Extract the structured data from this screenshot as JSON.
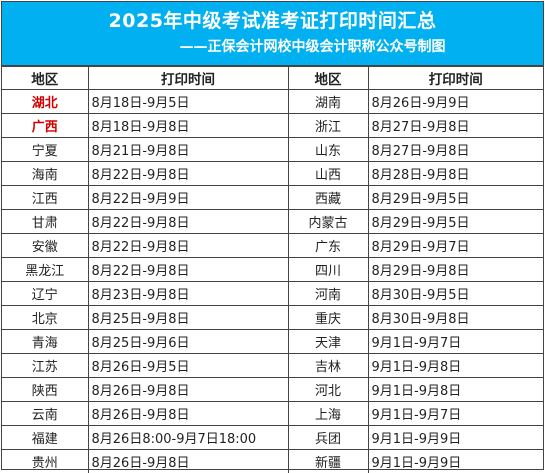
{
  "title": "2025年中级考试准考证打印时间汇总",
  "subtitle": "——正保会计网校中级会计职称公众号制图",
  "headers": [
    "地区",
    "打印时间",
    "地区",
    "打印时间"
  ],
  "accent_color": "#00b0f0",
  "highlight_color": "#d40000",
  "rows": [
    {
      "left": {
        "region": "湖北",
        "period": "8月18日-9月5日",
        "highlight": true
      },
      "right": {
        "region": "湖南",
        "period": "8月26日-9月9日"
      }
    },
    {
      "left": {
        "region": "广西",
        "period": "8月18日-9月8日",
        "highlight": true
      },
      "right": {
        "region": "浙江",
        "period": "8月27日-9月8日"
      }
    },
    {
      "left": {
        "region": "宁夏",
        "period": "8月21日-9月8日"
      },
      "right": {
        "region": "山东",
        "period": "8月27日-9月8日"
      }
    },
    {
      "left": {
        "region": "海南",
        "period": "8月22日-9月8日"
      },
      "right": {
        "region": "山西",
        "period": "8月28日-9月8日"
      }
    },
    {
      "left": {
        "region": "江西",
        "period": "8月22日-9月9日"
      },
      "right": {
        "region": "西藏",
        "period": "8月29日-9月5日"
      }
    },
    {
      "left": {
        "region": "甘肃",
        "period": "8月22日-9月8日"
      },
      "right": {
        "region": "内蒙古",
        "period": "8月29日-9月5日"
      }
    },
    {
      "left": {
        "region": "安徽",
        "period": "8月22日-9月8日"
      },
      "right": {
        "region": "广东",
        "period": "8月29日-9月7日"
      }
    },
    {
      "left": {
        "region": "黑龙江",
        "period": "8月22日-9月8日"
      },
      "right": {
        "region": "四川",
        "period": "8月29日-9月8日"
      }
    },
    {
      "left": {
        "region": "辽宁",
        "period": "8月23日-9月8日"
      },
      "right": {
        "region": "河南",
        "period": "8月30日-9月5日"
      }
    },
    {
      "left": {
        "region": "北京",
        "period": "8月25日-9月8日"
      },
      "right": {
        "region": "重庆",
        "period": "8月30日-9月8日"
      }
    },
    {
      "left": {
        "region": "青海",
        "period": "8月25日-9月6日"
      },
      "right": {
        "region": "天津",
        "period": "9月1日-9月7日"
      }
    },
    {
      "left": {
        "region": "江苏",
        "period": "8月26日-9月5日"
      },
      "right": {
        "region": "吉林",
        "period": "9月1日-9月8日"
      }
    },
    {
      "left": {
        "region": "陕西",
        "period": "8月26日-9月8日"
      },
      "right": {
        "region": "河北",
        "period": "9月1日-9月8日"
      }
    },
    {
      "left": {
        "region": "云南",
        "period": "8月26日-9月8日"
      },
      "right": {
        "region": "上海",
        "period": "9月1日-9月7日"
      }
    },
    {
      "left": {
        "region": "福建",
        "period": "8月26日8:00-9月7日18:00"
      },
      "right": {
        "region": "兵团",
        "period": "9月1日-9月9日"
      }
    },
    {
      "left": {
        "region": "贵州",
        "period": "8月26日-9月8日"
      },
      "right": {
        "region": "新疆",
        "period": "9月1日-9月9日"
      }
    }
  ]
}
